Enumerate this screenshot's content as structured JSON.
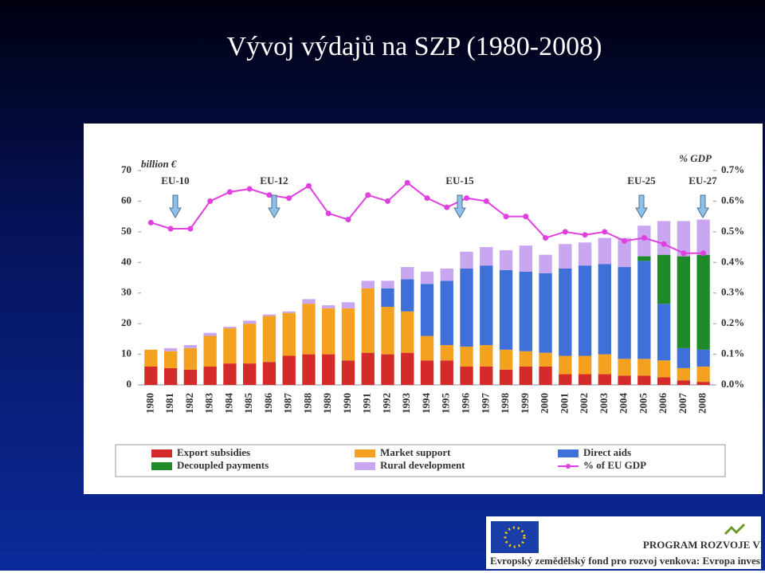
{
  "slide": {
    "title": "Vývoj výdajů na SZP (1980-2008)"
  },
  "chart_data": {
    "type": "bar",
    "stacked": true,
    "y_label": "billion €",
    "y2_label": "% GDP",
    "categories": [
      "1980",
      "1981",
      "1982",
      "1983",
      "1984",
      "1985",
      "1986",
      "1987",
      "1988",
      "1989",
      "1990",
      "1991",
      "1992",
      "1993",
      "1994",
      "1995",
      "1996",
      "1997",
      "1998",
      "1999",
      "2000",
      "2001",
      "2002",
      "2003",
      "2004",
      "2005",
      "2006",
      "2007",
      "2008"
    ],
    "series": [
      {
        "name": "Export subsidies",
        "color": "#d42a2a",
        "values": [
          6,
          5.5,
          5,
          6,
          7,
          7,
          7.5,
          9.5,
          10,
          10,
          8,
          10.5,
          10,
          10.5,
          8,
          8,
          6,
          6,
          5,
          6,
          6,
          3.5,
          3.5,
          3.5,
          3,
          3,
          2.5,
          1.5,
          1
        ]
      },
      {
        "name": "Market support",
        "color": "#f4a11f",
        "values": [
          5.5,
          5.5,
          7,
          10,
          11.5,
          13,
          15,
          14,
          16.5,
          15,
          17,
          21,
          15.5,
          13.5,
          8,
          5,
          6.5,
          7,
          6.5,
          5,
          4.5,
          6,
          6,
          6.5,
          5.5,
          5.5,
          5.5,
          4,
          5
        ]
      },
      {
        "name": "Direct aids",
        "color": "#3f6fd8",
        "values": [
          0,
          0,
          0,
          0,
          0,
          0,
          0,
          0,
          0,
          0,
          0,
          0,
          6,
          10.5,
          17,
          21,
          25.5,
          26,
          26,
          26,
          26,
          28.5,
          29.5,
          29.5,
          30,
          32,
          18.5,
          6.5,
          5.5
        ]
      },
      {
        "name": "Decoupled payments",
        "color": "#1f8a2a",
        "values": [
          0,
          0,
          0,
          0,
          0,
          0,
          0,
          0,
          0,
          0,
          0,
          0,
          0,
          0,
          0,
          0,
          0,
          0,
          0,
          0,
          0,
          0,
          0,
          0,
          0,
          1.5,
          16,
          30,
          31
        ]
      },
      {
        "name": "Rural development",
        "color": "#c9a6f0",
        "values": [
          0,
          1,
          1,
          1,
          0.5,
          1,
          0.5,
          0.5,
          1.5,
          1,
          2,
          2.5,
          2.5,
          4,
          4,
          4,
          5.5,
          6,
          6.5,
          8.5,
          6,
          8,
          7.5,
          8.5,
          9.5,
          10,
          11,
          11.5,
          11.5
        ]
      },
      {
        "name": "% of EU GDP",
        "color": "#e040e0",
        "type": "line",
        "axis": "y2",
        "values": [
          0.53,
          0.51,
          0.51,
          0.6,
          0.63,
          0.64,
          0.62,
          0.61,
          0.65,
          0.56,
          0.54,
          0.62,
          0.6,
          0.66,
          0.61,
          0.58,
          0.61,
          0.6,
          0.55,
          0.55,
          0.48,
          0.5,
          0.49,
          0.5,
          0.47,
          0.48,
          0.46,
          0.43,
          0.43
        ]
      }
    ],
    "ylim": [
      0,
      70
    ],
    "yticks": [
      0,
      10,
      20,
      30,
      40,
      50,
      60,
      70
    ],
    "y2lim": [
      0,
      0.7
    ],
    "y2ticks": [
      {
        "value": 0,
        "label": "0.0%"
      },
      {
        "value": 0.1,
        "label": "0.1%"
      },
      {
        "value": 0.2,
        "label": "0.2%"
      },
      {
        "value": 0.3,
        "label": "0.3%"
      },
      {
        "value": 0.4,
        "label": "0.4%"
      },
      {
        "value": 0.5,
        "label": "0.5%"
      },
      {
        "value": 0.6,
        "label": "0.6%"
      },
      {
        "value": 0.7,
        "label": "0.7%"
      }
    ],
    "annotations": [
      "EU-10",
      "EU-12",
      "EU-15",
      "EU-25",
      "EU-27"
    ]
  },
  "footer": {
    "program": "PROGRAM ROZVOJE VENKOVA",
    "text": "Evropský zemědělský fond pro rozvoj venkova: Evropa investuje do venkovských oblastí"
  }
}
